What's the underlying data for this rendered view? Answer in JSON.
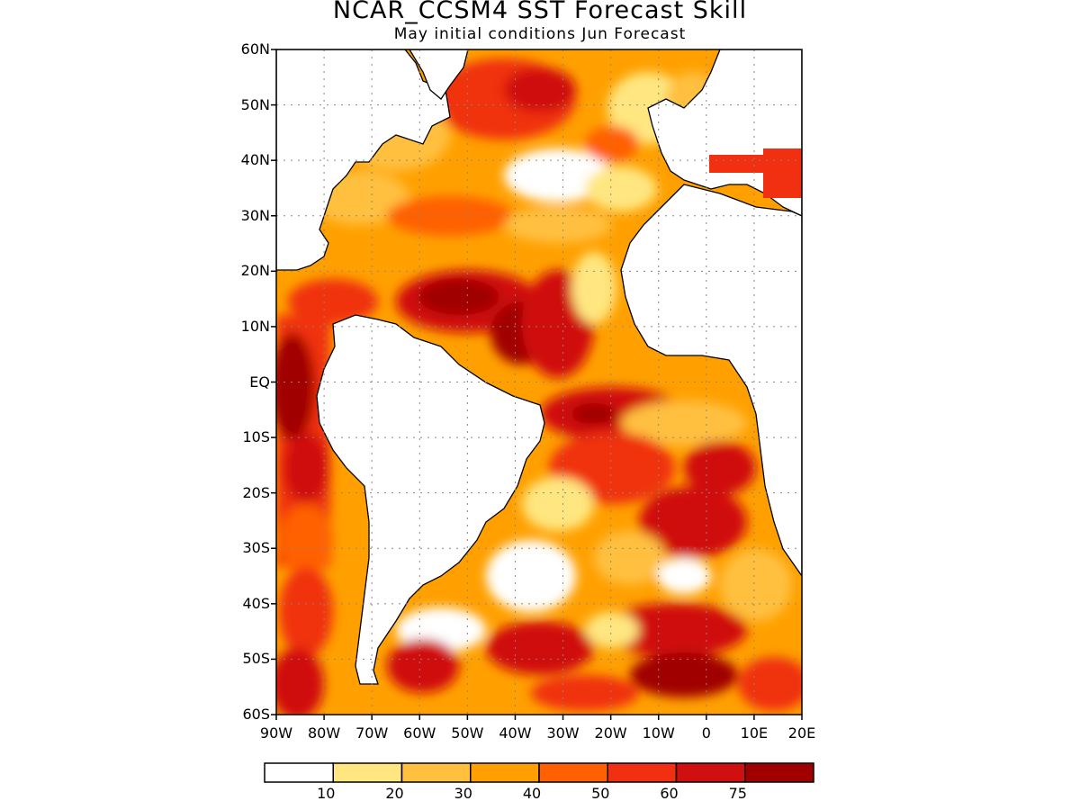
{
  "title": "NCAR_CCSM4 SST Forecast Skill",
  "subtitle": "May initial conditions  Jun Forecast",
  "map": {
    "lon_range": [
      -90,
      20
    ],
    "lat_range": [
      -60,
      60
    ],
    "lat_labels": [
      "60N",
      "50N",
      "40N",
      "30N",
      "20N",
      "10N",
      "EQ",
      "10S",
      "20S",
      "30S",
      "40S",
      "50S",
      "60S"
    ],
    "lon_labels": [
      "90W",
      "80W",
      "70W",
      "60W",
      "50W",
      "40W",
      "30W",
      "20W",
      "10W",
      "0",
      "10E",
      "20E"
    ],
    "grid": "dotted"
  },
  "colorbar": {
    "colors": [
      "#ffffff",
      "#ffe680",
      "#ffc040",
      "#ffa000",
      "#ff6000",
      "#f03010",
      "#d01010",
      "#a00000"
    ],
    "labels": [
      "10",
      "20",
      "30",
      "40",
      "50",
      "60",
      "75"
    ]
  }
}
